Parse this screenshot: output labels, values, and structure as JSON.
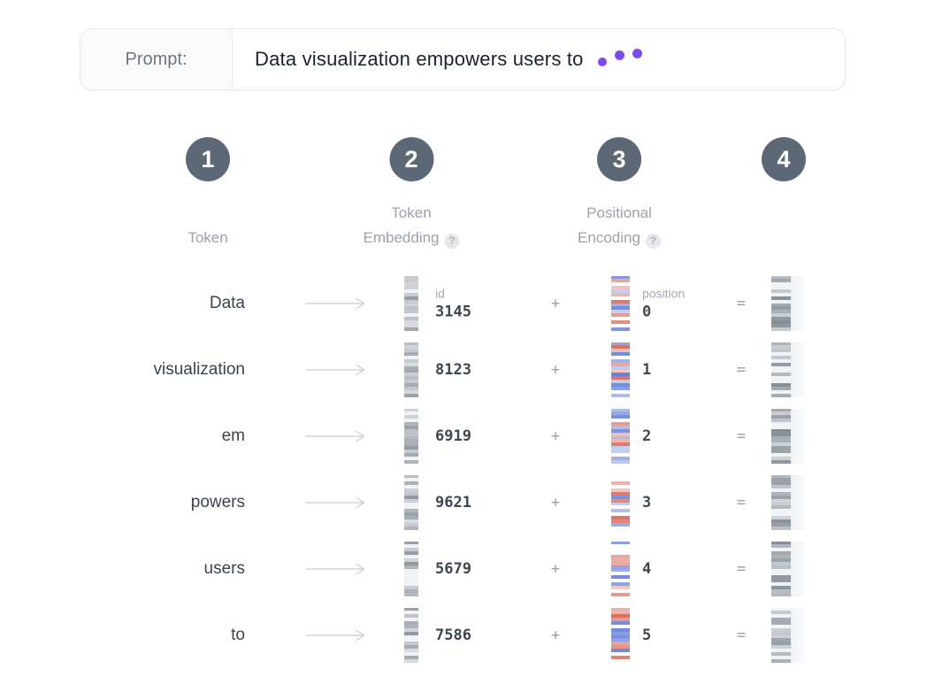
{
  "prompt_bar": {
    "label": "Prompt:",
    "text": "Data visualization empowers users to"
  },
  "steps": [
    {
      "number": "1",
      "label_lines": [
        "Token"
      ],
      "has_help": false
    },
    {
      "number": "2",
      "label_lines": [
        "Token",
        "Embedding"
      ],
      "has_help": true
    },
    {
      "number": "3",
      "label_lines": [
        "Positional",
        "Encoding"
      ],
      "has_help": true
    },
    {
      "number": "4",
      "label_lines": [],
      "has_help": false
    }
  ],
  "id_header": "id",
  "position_header": "position",
  "operators": {
    "plus": "+",
    "equals": "="
  },
  "rows": [
    {
      "token": "Data",
      "id": "3145",
      "position": "0"
    },
    {
      "token": "visualization",
      "id": "8123",
      "position": "1"
    },
    {
      "token": "em",
      "id": "6919",
      "position": "2"
    },
    {
      "token": "powers",
      "id": "9621",
      "position": "3"
    },
    {
      "token": "users",
      "id": "5679",
      "position": "4"
    },
    {
      "token": "to",
      "id": "7586",
      "position": "5"
    }
  ],
  "icons": {
    "help": "?"
  },
  "colors": {
    "accent": "#7c4bf2",
    "step_circle": "#5d6877",
    "label_gray": "#9aa2b0",
    "token_text": "#3a4352",
    "pe_red": "#dd8e85",
    "pe_blue": "#8ea4e3"
  }
}
